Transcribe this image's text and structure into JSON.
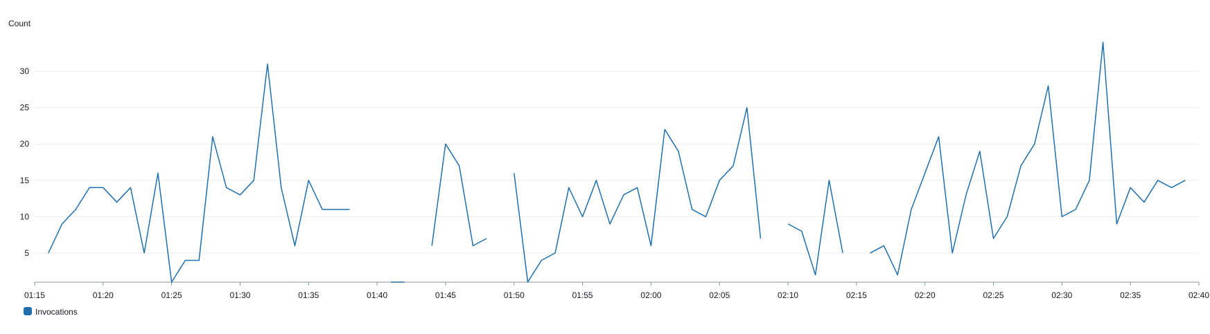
{
  "chart_data": {
    "type": "line",
    "ylabel": "Count",
    "ylim": [
      1,
      36
    ],
    "yticks": [
      5,
      10,
      15,
      20,
      25,
      30
    ],
    "xlim": [
      "01:15",
      "02:40"
    ],
    "xticks": [
      "01:15",
      "01:20",
      "01:25",
      "01:30",
      "01:35",
      "01:40",
      "01:45",
      "01:50",
      "01:55",
      "02:00",
      "02:05",
      "02:10",
      "02:15",
      "02:20",
      "02:25",
      "02:30",
      "02:35",
      "02:40"
    ],
    "grid": true,
    "legend_position": "bottom-left",
    "colors": {
      "series": "#1f6fad",
      "grid": "#e9ebed",
      "axis": "#879596"
    },
    "series": [
      {
        "name": "Invocations",
        "x": [
          "01:16",
          "01:17",
          "01:18",
          "01:19",
          "01:20",
          "01:21",
          "01:22",
          "01:23",
          "01:24",
          "01:25",
          "01:26",
          "01:27",
          "01:28",
          "01:29",
          "01:30",
          "01:31",
          "01:32",
          "01:33",
          "01:34",
          "01:35",
          "01:36",
          "01:37",
          "01:38",
          "01:39",
          "01:40",
          "01:41",
          "01:42",
          "01:43",
          "01:44",
          "01:45",
          "01:46",
          "01:47",
          "01:48",
          "01:49",
          "01:50",
          "01:51",
          "01:52",
          "01:53",
          "01:54",
          "01:55",
          "01:56",
          "01:57",
          "01:58",
          "01:59",
          "02:00",
          "02:01",
          "02:02",
          "02:03",
          "02:04",
          "02:05",
          "02:06",
          "02:07",
          "02:08",
          "02:09",
          "02:10",
          "02:11",
          "02:12",
          "02:13",
          "02:14",
          "02:15",
          "02:16",
          "02:17",
          "02:18",
          "02:19",
          "02:20",
          "02:21",
          "02:22",
          "02:23",
          "02:24",
          "02:25",
          "02:26",
          "02:27",
          "02:28",
          "02:29",
          "02:30",
          "02:31",
          "02:32",
          "02:33",
          "02:34",
          "02:35",
          "02:36",
          "02:37",
          "02:38",
          "02:39"
        ],
        "values": [
          5,
          9,
          11,
          14,
          14,
          12,
          14,
          5,
          16,
          1,
          4,
          4,
          21,
          14,
          13,
          15,
          31,
          14,
          6,
          15,
          11,
          11,
          11,
          null,
          null,
          1,
          1,
          null,
          6,
          20,
          17,
          6,
          7,
          null,
          16,
          1,
          4,
          5,
          14,
          10,
          15,
          9,
          13,
          14,
          6,
          22,
          19,
          11,
          10,
          15,
          17,
          25,
          7,
          null,
          9,
          8,
          2,
          15,
          5,
          null,
          5,
          6,
          2,
          11,
          16,
          21,
          5,
          13,
          19,
          7,
          10,
          17,
          20,
          28,
          10,
          11,
          15,
          34,
          9,
          14,
          12,
          15,
          14,
          15
        ]
      }
    ]
  }
}
